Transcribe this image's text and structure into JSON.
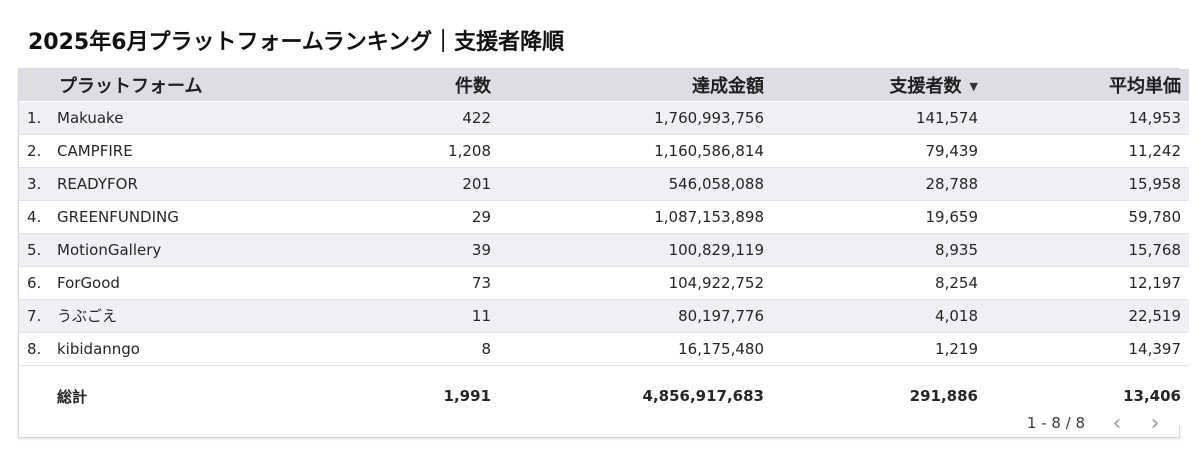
{
  "title": "2025年6月プラットフォームランキング｜支援者降順",
  "table": {
    "headers": {
      "platform": "プラットフォーム",
      "count": "件数",
      "amount": "達成金額",
      "backers": "支援者数",
      "avg": "平均単価"
    },
    "sort_icon": "sort-desc-icon",
    "rows": [
      {
        "rank": "1.",
        "platform": "Makuake",
        "count": "422",
        "amount": "1,760,993,756",
        "backers": "141,574",
        "avg": "14,953"
      },
      {
        "rank": "2.",
        "platform": "CAMPFIRE",
        "count": "1,208",
        "amount": "1,160,586,814",
        "backers": "79,439",
        "avg": "11,242"
      },
      {
        "rank": "3.",
        "platform": "READYFOR",
        "count": "201",
        "amount": "546,058,088",
        "backers": "28,788",
        "avg": "15,958"
      },
      {
        "rank": "4.",
        "platform": "GREENFUNDING",
        "count": "29",
        "amount": "1,087,153,898",
        "backers": "19,659",
        "avg": "59,780"
      },
      {
        "rank": "5.",
        "platform": "MotionGallery",
        "count": "39",
        "amount": "100,829,119",
        "backers": "8,935",
        "avg": "15,768"
      },
      {
        "rank": "6.",
        "platform": "ForGood",
        "count": "73",
        "amount": "104,922,752",
        "backers": "8,254",
        "avg": "12,197"
      },
      {
        "rank": "7.",
        "platform": "うぶごえ",
        "count": "11",
        "amount": "80,197,776",
        "backers": "4,018",
        "avg": "22,519"
      },
      {
        "rank": "8.",
        "platform": "kibidanngo",
        "count": "8",
        "amount": "16,175,480",
        "backers": "1,219",
        "avg": "14,397"
      }
    ],
    "total": {
      "label": "総計",
      "count": "1,991",
      "amount": "4,856,917,683",
      "backers": "291,886",
      "avg": "13,406"
    }
  },
  "pager": {
    "range": "1 - 8 / 8",
    "prev_icon": "chevron-left-icon",
    "next_icon": "chevron-right-icon"
  }
}
